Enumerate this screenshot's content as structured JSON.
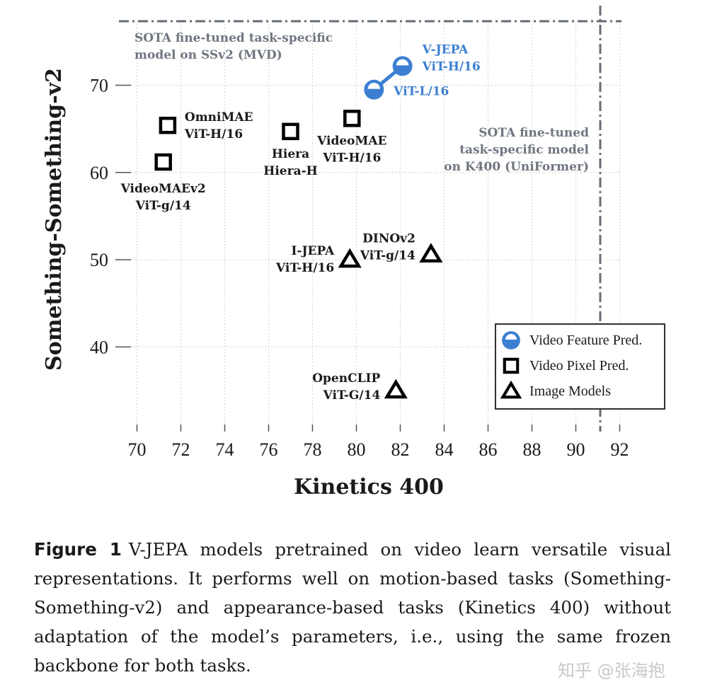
{
  "chart_data": {
    "type": "scatter",
    "title": "",
    "xlabel": "Kinetics 400",
    "ylabel": "Something-Something-v2",
    "xlim": [
      69.5,
      92.5
    ],
    "ylim": [
      32.5,
      77.2
    ],
    "xticks": [
      70,
      72,
      74,
      76,
      78,
      80,
      82,
      84,
      86,
      88,
      90,
      92
    ],
    "yticks": [
      40,
      50,
      60,
      70
    ],
    "grid": true,
    "series": [
      {
        "name": "Video Feature Pred.",
        "marker": "half-circle",
        "color": "#3c7fd2",
        "points": [
          {
            "id": "vjepa-vitl",
            "x": 80.8,
            "y": 69.5,
            "label_lines": [
              "ViT-L/16"
            ],
            "label_pos": "right"
          },
          {
            "id": "vjepa-vith",
            "x": 82.1,
            "y": 72.2,
            "label_lines": [
              "V-JEPA",
              "ViT-H/16"
            ],
            "label_pos": "right"
          }
        ],
        "connect": true
      },
      {
        "name": "Video Pixel Pred.",
        "marker": "square",
        "color": "#000000",
        "points": [
          {
            "id": "omnimae",
            "x": 71.4,
            "y": 65.4,
            "label_lines": [
              "OmniMAE",
              "ViT-H/16"
            ],
            "label_pos": "right"
          },
          {
            "id": "videomaev2",
            "x": 71.2,
            "y": 61.2,
            "label_lines": [
              "VideoMAEv2",
              "ViT-g/14"
            ],
            "label_pos": "below"
          },
          {
            "id": "hiera",
            "x": 77.0,
            "y": 64.7,
            "label_lines": [
              "Hiera",
              "Hiera-H"
            ],
            "label_pos": "below"
          },
          {
            "id": "videomae",
            "x": 79.8,
            "y": 66.2,
            "label_lines": [
              "VideoMAE",
              "ViT-H/16"
            ],
            "label_pos": "below"
          }
        ]
      },
      {
        "name": "Image Models",
        "marker": "triangle",
        "color": "#000000",
        "points": [
          {
            "id": "ijepa",
            "x": 79.7,
            "y": 50.0,
            "label_lines": [
              "I-JEPA",
              "ViT-H/16"
            ],
            "label_pos": "left"
          },
          {
            "id": "dinov2",
            "x": 83.4,
            "y": 50.6,
            "label_lines": [
              "DINOv2",
              "ViT-g/14"
            ],
            "label_pos": "left"
          },
          {
            "id": "openclip",
            "x": 81.8,
            "y": 35.0,
            "label_lines": [
              "OpenCLIP",
              "ViT-G/14"
            ],
            "label_pos": "left"
          }
        ]
      }
    ],
    "reference_lines": [
      {
        "id": "sota-ssv2",
        "axis": "y",
        "value": 77.0,
        "style": "dash-dot",
        "label_lines": [
          "SOTA  fine-tuned  task-specific",
          "model  on  SSv2  (MVD)"
        ]
      },
      {
        "id": "sota-k400",
        "axis": "x",
        "value": 91.1,
        "style": "dash-dot",
        "label_lines": [
          "SOTA  fine-tuned",
          "task-specific  model",
          "on  K400  (UniFormer)"
        ]
      }
    ],
    "legend": {
      "position": "lower-right",
      "entries": [
        "Video Feature Pred.",
        "Video Pixel Pred.",
        "Image Models"
      ]
    }
  },
  "caption": {
    "label": "Figure 1",
    "text": "V-JEPA models pretrained on video learn versatile visual representations. It performs well on motion-based tasks (Something-Something-v2) and appearance-based tasks (Kinetics 400) without adaptation of the model’s parameters, i.e., using the same frozen backbone for both tasks."
  },
  "watermark": "知乎 @张海抱"
}
